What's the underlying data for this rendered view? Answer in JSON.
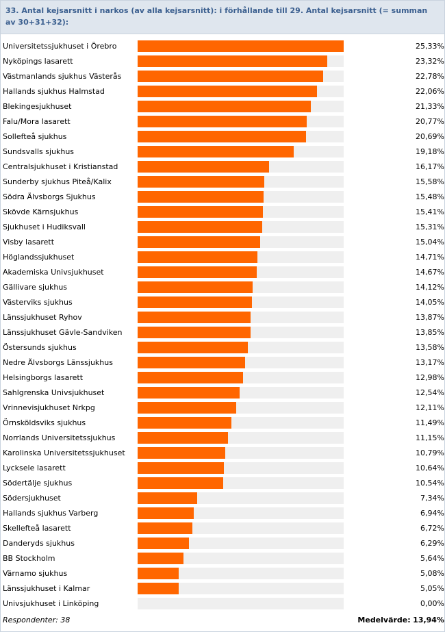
{
  "header": {
    "title": "33. Antal kejsarsnitt i narkos (av alla kejsarsnitt): i förhållande till 29. Antal kejsarsnitt (= summan av 30+31+32):"
  },
  "colors": {
    "bar": "#ff6600",
    "track": "#efefef",
    "title": "#3b5f8f",
    "header_bg": "#dfe6ee"
  },
  "chart_data": {
    "type": "bar",
    "orientation": "horizontal",
    "xlim": [
      0,
      25.33
    ],
    "categories": [
      "Universitetssjukhuset i Örebro",
      "Nyköpings lasarett",
      "Västmanlands sjukhus Västerås",
      "Hallands sjukhus Halmstad",
      "Blekingesjukhuset",
      "Falu/Mora lasarett",
      "Sollefteå sjukhus",
      "Sundsvalls sjukhus",
      "Centralsjukhuset i Kristianstad",
      "Sunderby sjukhus Piteå/Kalix",
      "Södra Älvsborgs Sjukhus",
      "Skövde Kärnsjukhus",
      "Sjukhuset i Hudiksvall",
      "Visby lasarett",
      "Höglandssjukhuset",
      "Akademiska Univsjukhuset",
      "Gällivare sjukhus",
      "Västerviks sjukhus",
      "Länssjukhuset Ryhov",
      "Länssjukhuset Gävle-Sandviken",
      "Östersunds sjukhus",
      "Nedre Älvsborgs Länssjukhus",
      "Helsingborgs lasarett",
      "Sahlgrenska Univsjukhuset",
      "Vrinnevisjukhuset Nrkpg",
      "Örnsköldsviks sjukhus",
      "Norrlands Universitetssjukhus",
      "Karolinska Universitetssjukhuset",
      "Lycksele lasarett",
      "Södertälje sjukhus",
      "Södersjukhuset",
      "Hallands sjukhus Varberg",
      "Skellefteå lasarett",
      "Danderyds sjukhus",
      "BB Stockholm",
      "Värnamo sjukhus",
      "Länssjukhuset i Kalmar",
      "Univsjukhuset i Linköping"
    ],
    "values": [
      25.33,
      23.32,
      22.78,
      22.06,
      21.33,
      20.77,
      20.69,
      19.18,
      16.17,
      15.58,
      15.48,
      15.41,
      15.31,
      15.04,
      14.71,
      14.67,
      14.12,
      14.05,
      13.87,
      13.85,
      13.58,
      13.17,
      12.98,
      12.54,
      12.11,
      11.49,
      11.15,
      10.79,
      10.64,
      10.54,
      7.34,
      6.94,
      6.72,
      6.29,
      5.64,
      5.08,
      5.05,
      0.0
    ],
    "value_labels": [
      "25,33%",
      "23,32%",
      "22,78%",
      "22,06%",
      "21,33%",
      "20,77%",
      "20,69%",
      "19,18%",
      "16,17%",
      "15,58%",
      "15,48%",
      "15,41%",
      "15,31%",
      "15,04%",
      "14,71%",
      "14,67%",
      "14,12%",
      "14,05%",
      "13,87%",
      "13,85%",
      "13,58%",
      "13,17%",
      "12,98%",
      "12,54%",
      "12,11%",
      "11,49%",
      "11,15%",
      "10,79%",
      "10,64%",
      "10,54%",
      "7,34%",
      "6,94%",
      "6,72%",
      "6,29%",
      "5,64%",
      "5,08%",
      "5,05%",
      "0,00%"
    ]
  },
  "footer": {
    "respondents": "Respondenter: 38",
    "mean_label": "Medelvärde:",
    "mean_value": "13,94%"
  }
}
